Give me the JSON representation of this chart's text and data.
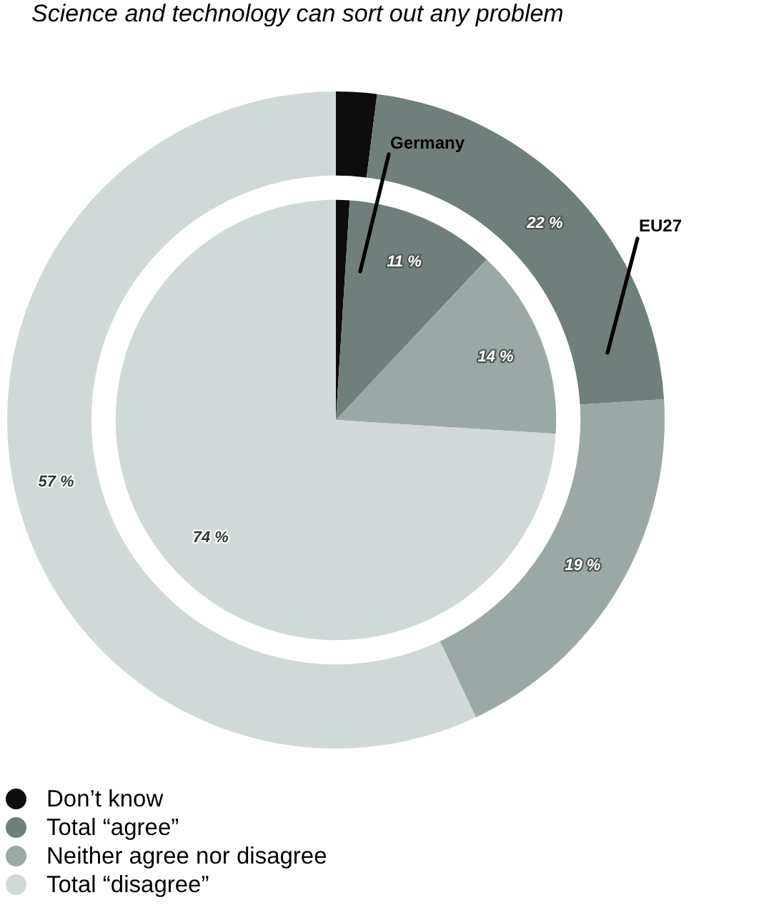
{
  "chart_data": {
    "type": "donut",
    "title": "Science and technology can sort out any problem",
    "categories": [
      "Don’t know",
      "Total “agree”",
      "Neither agree nor disagree",
      "Total “disagree”"
    ],
    "colors": [
      "#0d0d0d",
      "#6f7f7c",
      "#9aa8a6",
      "#d0d9d8"
    ],
    "series": [
      {
        "name": "Germany",
        "type": "pie",
        "values": [
          1,
          11,
          14,
          74
        ],
        "value_labels": [
          null,
          "11 %",
          "14 %",
          "74 %"
        ]
      },
      {
        "name": "EU27",
        "values": [
          2,
          22,
          19,
          57
        ],
        "value_labels": [
          null,
          "22 %",
          "19 %",
          "57 %"
        ]
      }
    ],
    "legend": "bottom left"
  }
}
